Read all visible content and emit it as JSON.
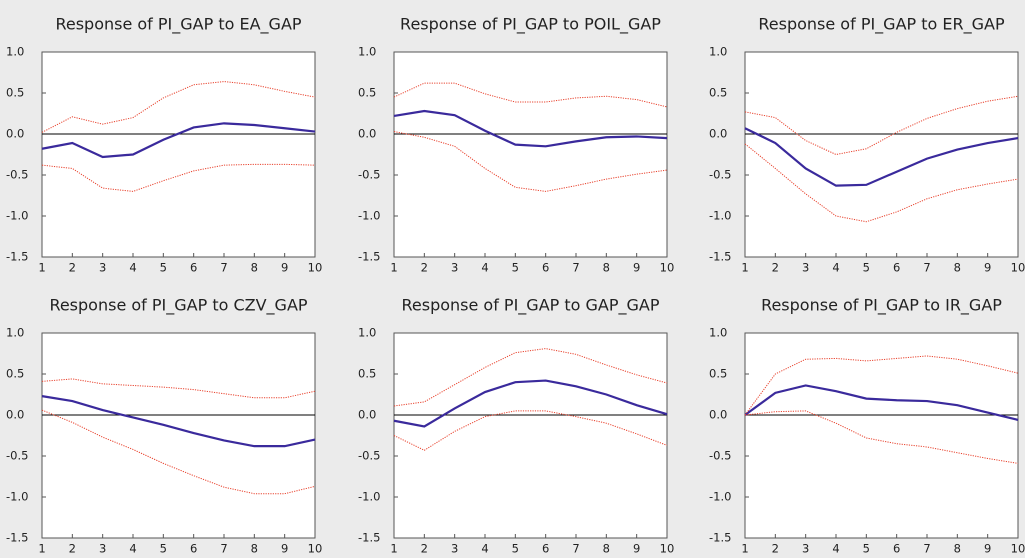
{
  "chart_data": [
    {
      "type": "line",
      "title": "Response of PI_GAP to EA_GAP",
      "x": [
        1,
        2,
        3,
        4,
        5,
        6,
        7,
        8,
        9,
        10
      ],
      "xlim": [
        1,
        10
      ],
      "xticks": [
        1,
        2,
        3,
        4,
        5,
        6,
        7,
        8,
        9,
        10
      ],
      "ylim": [
        -1.5,
        1.0
      ],
      "yticks": [
        {
          "value": -1.5,
          "label": "-1.5"
        },
        {
          "value": -1,
          "label": "-1.0"
        },
        -0.5,
        {
          "value": 0,
          "label": "0.0"
        },
        0.5,
        {
          "value": 1,
          "label": "1.0"
        }
      ],
      "zero_line": true,
      "series": [
        {
          "color": "#3a2a9c",
          "style": "solid",
          "values": [
            -0.18,
            -0.11,
            -0.28,
            -0.25,
            -0.07,
            0.08,
            0.13,
            0.11,
            0.07,
            0.03
          ]
        },
        {
          "color": "#e8412c",
          "style": "dotted",
          "values": [
            0.02,
            0.21,
            0.12,
            0.2,
            0.44,
            0.6,
            0.64,
            0.6,
            0.52,
            0.45
          ]
        },
        {
          "color": "#e8412c",
          "style": "dotted",
          "values": [
            -0.38,
            -0.42,
            -0.66,
            -0.7,
            -0.57,
            -0.45,
            -0.38,
            -0.37,
            -0.37,
            -0.38
          ]
        }
      ]
    },
    {
      "type": "line",
      "title": "Response of PI_GAP to POIL_GAP",
      "x": [
        1,
        2,
        3,
        4,
        5,
        6,
        7,
        8,
        9,
        10
      ],
      "xlim": [
        1,
        10
      ],
      "xticks": [
        1,
        2,
        3,
        4,
        5,
        6,
        7,
        8,
        9,
        10
      ],
      "ylim": [
        -1.5,
        1.0
      ],
      "yticks": [
        {
          "value": -1.5,
          "label": "-1.5"
        },
        {
          "value": -1,
          "label": "-1.0"
        },
        -0.5,
        {
          "value": 0,
          "label": "0.0"
        },
        0.5,
        {
          "value": 1,
          "label": "1.0"
        }
      ],
      "zero_line": true,
      "series": [
        {
          "color": "#3a2a9c",
          "style": "solid",
          "values": [
            0.22,
            0.28,
            0.23,
            0.04,
            -0.13,
            -0.15,
            -0.09,
            -0.04,
            -0.03,
            -0.05
          ]
        },
        {
          "color": "#e8412c",
          "style": "dotted",
          "values": [
            0.45,
            0.62,
            0.62,
            0.49,
            0.39,
            0.39,
            0.44,
            0.46,
            0.42,
            0.33
          ]
        },
        {
          "color": "#e8412c",
          "style": "dotted",
          "values": [
            0.03,
            -0.04,
            -0.15,
            -0.42,
            -0.65,
            -0.7,
            -0.63,
            -0.55,
            -0.49,
            -0.44
          ]
        }
      ]
    },
    {
      "type": "line",
      "title": "Response of PI_GAP to ER_GAP",
      "x": [
        1,
        2,
        3,
        4,
        5,
        6,
        7,
        8,
        9,
        10
      ],
      "xlim": [
        1,
        10
      ],
      "xticks": [
        1,
        2,
        3,
        4,
        5,
        6,
        7,
        8,
        9,
        10
      ],
      "ylim": [
        -1.5,
        1.0
      ],
      "yticks": [
        {
          "value": -1.5,
          "label": "-1.5"
        },
        {
          "value": -1,
          "label": "-1.0"
        },
        -0.5,
        {
          "value": 0,
          "label": "0.0"
        },
        0.5,
        {
          "value": 1,
          "label": "1.0"
        }
      ],
      "zero_line": true,
      "series": [
        {
          "color": "#3a2a9c",
          "style": "solid",
          "values": [
            0.07,
            -0.11,
            -0.42,
            -0.63,
            -0.62,
            -0.46,
            -0.3,
            -0.19,
            -0.11,
            -0.05
          ]
        },
        {
          "color": "#e8412c",
          "style": "dotted",
          "values": [
            0.27,
            0.2,
            -0.08,
            -0.25,
            -0.18,
            0.02,
            0.19,
            0.31,
            0.4,
            0.46
          ]
        },
        {
          "color": "#e8412c",
          "style": "dotted",
          "values": [
            -0.12,
            -0.42,
            -0.73,
            -1.0,
            -1.07,
            -0.95,
            -0.79,
            -0.68,
            -0.61,
            -0.55
          ]
        }
      ]
    },
    {
      "type": "line",
      "title": "Response of PI_GAP to CZV_GAP",
      "x": [
        1,
        2,
        3,
        4,
        5,
        6,
        7,
        8,
        9,
        10
      ],
      "xlim": [
        1,
        10
      ],
      "xticks": [
        1,
        2,
        3,
        4,
        5,
        6,
        7,
        8,
        9,
        10
      ],
      "ylim": [
        -1.5,
        1.0
      ],
      "yticks": [
        {
          "value": -1.5,
          "label": "-1.5"
        },
        {
          "value": -1,
          "label": "-1.0"
        },
        -0.5,
        {
          "value": 0,
          "label": "0.0"
        },
        0.5,
        {
          "value": 1,
          "label": "1.0"
        }
      ],
      "zero_line": true,
      "series": [
        {
          "color": "#3a2a9c",
          "style": "solid",
          "values": [
            0.23,
            0.17,
            0.06,
            -0.03,
            -0.12,
            -0.22,
            -0.31,
            -0.38,
            -0.38,
            -0.3
          ]
        },
        {
          "color": "#e8412c",
          "style": "dotted",
          "values": [
            0.41,
            0.44,
            0.38,
            0.36,
            0.34,
            0.31,
            0.26,
            0.21,
            0.21,
            0.29
          ]
        },
        {
          "color": "#e8412c",
          "style": "dotted",
          "values": [
            0.06,
            -0.09,
            -0.27,
            -0.42,
            -0.59,
            -0.74,
            -0.88,
            -0.96,
            -0.96,
            -0.87
          ]
        }
      ]
    },
    {
      "type": "line",
      "title": "Response of PI_GAP to GAP_GAP",
      "x": [
        1,
        2,
        3,
        4,
        5,
        6,
        7,
        8,
        9,
        10
      ],
      "xlim": [
        1,
        10
      ],
      "xticks": [
        1,
        2,
        3,
        4,
        5,
        6,
        7,
        8,
        9,
        10
      ],
      "ylim": [
        -1.5,
        1.0
      ],
      "yticks": [
        {
          "value": -1.5,
          "label": "-1.5"
        },
        {
          "value": -1,
          "label": "-1.0"
        },
        -0.5,
        {
          "value": 0,
          "label": "0.0"
        },
        0.5,
        {
          "value": 1,
          "label": "1.0"
        }
      ],
      "zero_line": true,
      "series": [
        {
          "color": "#3a2a9c",
          "style": "solid",
          "values": [
            -0.07,
            -0.14,
            0.08,
            0.28,
            0.4,
            0.42,
            0.35,
            0.25,
            0.12,
            0.01
          ]
        },
        {
          "color": "#e8412c",
          "style": "dotted",
          "values": [
            0.11,
            0.16,
            0.37,
            0.58,
            0.76,
            0.81,
            0.74,
            0.61,
            0.49,
            0.39
          ]
        },
        {
          "color": "#e8412c",
          "style": "dotted",
          "values": [
            -0.25,
            -0.43,
            -0.2,
            -0.02,
            0.05,
            0.05,
            -0.02,
            -0.1,
            -0.23,
            -0.37
          ]
        }
      ]
    },
    {
      "type": "line",
      "title": "Response of PI_GAP to IR_GAP",
      "x": [
        1,
        2,
        3,
        4,
        5,
        6,
        7,
        8,
        9,
        10
      ],
      "xlim": [
        1,
        10
      ],
      "xticks": [
        1,
        2,
        3,
        4,
        5,
        6,
        7,
        8,
        9,
        10
      ],
      "ylim": [
        -1.5,
        1.0
      ],
      "yticks": [
        {
          "value": -1.5,
          "label": "-1.5"
        },
        {
          "value": -1,
          "label": "-1.0"
        },
        -0.5,
        {
          "value": 0,
          "label": "0.0"
        },
        0.5,
        {
          "value": 1,
          "label": "1.0"
        }
      ],
      "zero_line": true,
      "series": [
        {
          "color": "#3a2a9c",
          "style": "solid",
          "values": [
            0,
            0.27,
            0.36,
            0.29,
            0.2,
            0.18,
            0.17,
            0.12,
            0.03,
            -0.06
          ]
        },
        {
          "color": "#e8412c",
          "style": "dotted",
          "values": [
            0,
            0.5,
            0.68,
            0.69,
            0.66,
            0.69,
            0.72,
            0.68,
            0.6,
            0.51
          ]
        },
        {
          "color": "#e8412c",
          "style": "dotted",
          "values": [
            0,
            0.04,
            0.05,
            -0.1,
            -0.28,
            -0.35,
            -0.39,
            -0.46,
            -0.53,
            -0.59
          ]
        }
      ]
    }
  ]
}
